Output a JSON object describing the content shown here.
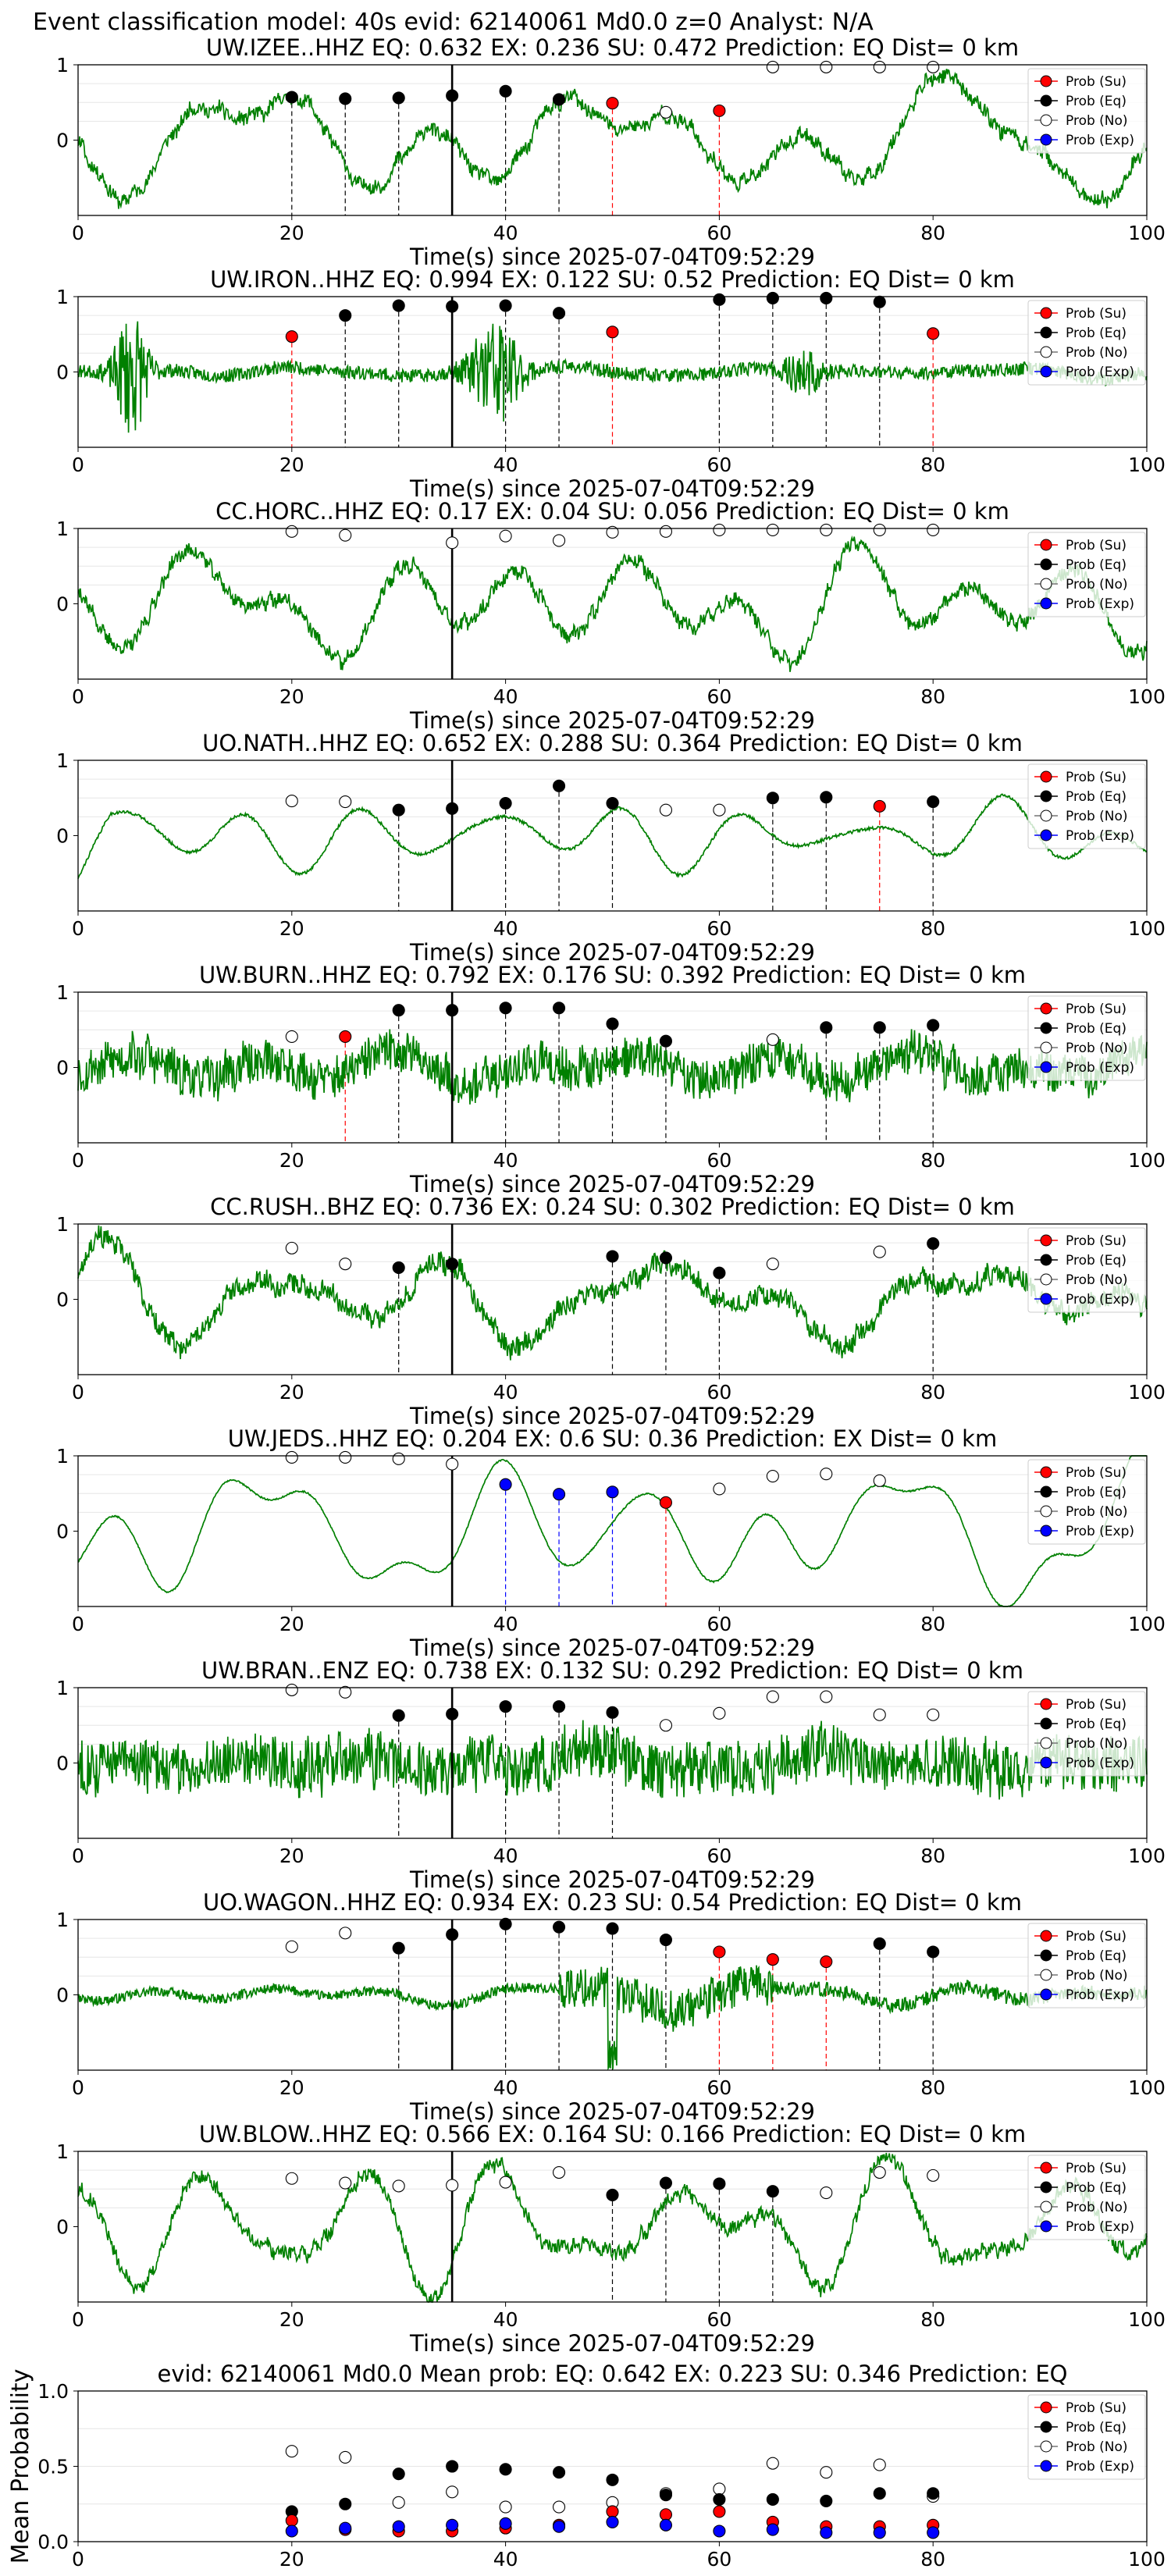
{
  "page_title": "Event classification model: 40s evid: 62140061 Md0.0 z=0 Analyst: N/A",
  "legend_labels": [
    "Prob (Su)",
    "Prob (Eq)",
    "Prob (No)",
    "Prob (Exp)"
  ],
  "colors": {
    "su": "#ff0000",
    "eq": "#000000",
    "no": "#ffffff",
    "exp": "#0000ff",
    "trace": "#008000"
  },
  "chart_data": [
    {
      "type": "line",
      "title": "UW.IZEE..HHZ   EQ: 0.632  EX: 0.236  SU: 0.472   Prediction: EQ    Dist= 0 km",
      "xlabel": "Time(s) since 2025-07-04T09:52:29",
      "xlim": [
        0,
        100
      ],
      "ylim": [
        -1,
        1
      ],
      "xticks": [
        "0",
        "20",
        "40",
        "60",
        "80",
        "100"
      ],
      "yticks": [
        "1",
        "0"
      ],
      "p_arrival": 35,
      "trace": {
        "character": "low-frequency",
        "seed": 11
      },
      "points": [
        {
          "t": 20,
          "cls": "eq",
          "p": 0.57
        },
        {
          "t": 25,
          "cls": "eq",
          "p": 0.55
        },
        {
          "t": 30,
          "cls": "eq",
          "p": 0.56
        },
        {
          "t": 35,
          "cls": "eq",
          "p": 0.59
        },
        {
          "t": 40,
          "cls": "eq",
          "p": 0.65
        },
        {
          "t": 45,
          "cls": "eq",
          "p": 0.54
        },
        {
          "t": 50,
          "cls": "su",
          "p": 0.49
        },
        {
          "t": 55,
          "cls": "no",
          "p": 0.37
        },
        {
          "t": 60,
          "cls": "su",
          "p": 0.39
        },
        {
          "t": 65,
          "cls": "no",
          "p": 0.97
        },
        {
          "t": 70,
          "cls": "no",
          "p": 0.97
        },
        {
          "t": 75,
          "cls": "no",
          "p": 0.97
        },
        {
          "t": 80,
          "cls": "no",
          "p": 0.97
        }
      ]
    },
    {
      "type": "line",
      "title": "UW.IRON..HHZ   EQ: 0.994  EX: 0.122  SU: 0.52   Prediction: EQ    Dist= 0 km",
      "xlabel": "Time(s) since 2025-07-04T09:52:29",
      "xlim": [
        0,
        100
      ],
      "ylim": [
        -1,
        1
      ],
      "xticks": [
        "0",
        "20",
        "40",
        "60",
        "80",
        "100"
      ],
      "yticks": [
        "1",
        "0"
      ],
      "p_arrival": 35,
      "trace": {
        "character": "quiet-bursts",
        "seed": 23
      },
      "points": [
        {
          "t": 20,
          "cls": "su",
          "p": 0.47
        },
        {
          "t": 25,
          "cls": "eq",
          "p": 0.75
        },
        {
          "t": 30,
          "cls": "eq",
          "p": 0.88
        },
        {
          "t": 35,
          "cls": "eq",
          "p": 0.87
        },
        {
          "t": 40,
          "cls": "eq",
          "p": 0.88
        },
        {
          "t": 45,
          "cls": "eq",
          "p": 0.78
        },
        {
          "t": 50,
          "cls": "su",
          "p": 0.53
        },
        {
          "t": 60,
          "cls": "eq",
          "p": 0.96
        },
        {
          "t": 65,
          "cls": "eq",
          "p": 0.98
        },
        {
          "t": 70,
          "cls": "eq",
          "p": 0.98
        },
        {
          "t": 75,
          "cls": "eq",
          "p": 0.93
        },
        {
          "t": 80,
          "cls": "su",
          "p": 0.51
        }
      ]
    },
    {
      "type": "line",
      "title": "CC.HORC..HHZ   EQ: 0.17  EX: 0.04  SU: 0.056   Prediction: EQ    Dist= 0 km",
      "xlabel": "Time(s) since 2025-07-04T09:52:29",
      "xlim": [
        0,
        100
      ],
      "ylim": [
        -1,
        1
      ],
      "xticks": [
        "0",
        "20",
        "40",
        "60",
        "80",
        "100"
      ],
      "yticks": [
        "1",
        "0"
      ],
      "p_arrival": 35,
      "trace": {
        "character": "low-frequency",
        "seed": 37
      },
      "points": [
        {
          "t": 20,
          "cls": "no",
          "p": 0.96
        },
        {
          "t": 25,
          "cls": "no",
          "p": 0.91
        },
        {
          "t": 35,
          "cls": "no",
          "p": 0.81
        },
        {
          "t": 40,
          "cls": "no",
          "p": 0.9
        },
        {
          "t": 45,
          "cls": "no",
          "p": 0.84
        },
        {
          "t": 50,
          "cls": "no",
          "p": 0.95
        },
        {
          "t": 55,
          "cls": "no",
          "p": 0.96
        },
        {
          "t": 60,
          "cls": "no",
          "p": 0.98
        },
        {
          "t": 65,
          "cls": "no",
          "p": 0.98
        },
        {
          "t": 70,
          "cls": "no",
          "p": 0.98
        },
        {
          "t": 75,
          "cls": "no",
          "p": 0.98
        },
        {
          "t": 80,
          "cls": "no",
          "p": 0.98
        }
      ]
    },
    {
      "type": "line",
      "title": "UO.NATH..HHZ   EQ: 0.652  EX: 0.288  SU: 0.364   Prediction: EQ    Dist= 0 km",
      "xlabel": "Time(s) since 2025-07-04T09:52:29",
      "xlim": [
        0,
        100
      ],
      "ylim": [
        -1,
        1
      ],
      "xticks": [
        "0",
        "20",
        "40",
        "60",
        "80",
        "100"
      ],
      "yticks": [
        "1",
        "0"
      ],
      "p_arrival": 35,
      "trace": {
        "character": "smooth-small",
        "seed": 41
      },
      "points": [
        {
          "t": 20,
          "cls": "no",
          "p": 0.46
        },
        {
          "t": 25,
          "cls": "no",
          "p": 0.45
        },
        {
          "t": 30,
          "cls": "eq",
          "p": 0.34
        },
        {
          "t": 35,
          "cls": "eq",
          "p": 0.36
        },
        {
          "t": 40,
          "cls": "eq",
          "p": 0.43
        },
        {
          "t": 45,
          "cls": "eq",
          "p": 0.66
        },
        {
          "t": 50,
          "cls": "eq",
          "p": 0.43
        },
        {
          "t": 55,
          "cls": "no",
          "p": 0.34
        },
        {
          "t": 60,
          "cls": "no",
          "p": 0.34
        },
        {
          "t": 65,
          "cls": "eq",
          "p": 0.5
        },
        {
          "t": 70,
          "cls": "eq",
          "p": 0.51
        },
        {
          "t": 75,
          "cls": "su",
          "p": 0.39
        },
        {
          "t": 80,
          "cls": "eq",
          "p": 0.45
        }
      ]
    },
    {
      "type": "line",
      "title": "UW.BURN..HHZ   EQ: 0.792  EX: 0.176  SU: 0.392   Prediction: EQ    Dist= 0 km",
      "xlabel": "Time(s) since 2025-07-04T09:52:29",
      "xlim": [
        0,
        100
      ],
      "ylim": [
        -1,
        1
      ],
      "xticks": [
        "0",
        "20",
        "40",
        "60",
        "80",
        "100"
      ],
      "yticks": [
        "1",
        "0"
      ],
      "p_arrival": 35,
      "trace": {
        "character": "noisy",
        "seed": 53
      },
      "points": [
        {
          "t": 20,
          "cls": "no",
          "p": 0.41
        },
        {
          "t": 25,
          "cls": "su",
          "p": 0.41
        },
        {
          "t": 30,
          "cls": "eq",
          "p": 0.76
        },
        {
          "t": 35,
          "cls": "eq",
          "p": 0.76
        },
        {
          "t": 40,
          "cls": "eq",
          "p": 0.79
        },
        {
          "t": 45,
          "cls": "eq",
          "p": 0.79
        },
        {
          "t": 50,
          "cls": "eq",
          "p": 0.58
        },
        {
          "t": 55,
          "cls": "eq",
          "p": 0.35
        },
        {
          "t": 65,
          "cls": "no",
          "p": 0.37
        },
        {
          "t": 70,
          "cls": "eq",
          "p": 0.53
        },
        {
          "t": 75,
          "cls": "eq",
          "p": 0.53
        },
        {
          "t": 80,
          "cls": "eq",
          "p": 0.56
        }
      ]
    },
    {
      "type": "line",
      "title": "CC.RUSH..BHZ   EQ: 0.736  EX: 0.24  SU: 0.302   Prediction: EQ    Dist= 0 km",
      "xlabel": "Time(s) since 2025-07-04T09:52:29",
      "xlim": [
        0,
        100
      ],
      "ylim": [
        -1,
        1
      ],
      "xticks": [
        "0",
        "20",
        "40",
        "60",
        "80",
        "100"
      ],
      "yticks": [
        "1",
        "0"
      ],
      "p_arrival": 35,
      "trace": {
        "character": "medium",
        "seed": 67
      },
      "points": [
        {
          "t": 20,
          "cls": "no",
          "p": 0.68
        },
        {
          "t": 25,
          "cls": "no",
          "p": 0.47
        },
        {
          "t": 30,
          "cls": "eq",
          "p": 0.42
        },
        {
          "t": 35,
          "cls": "eq",
          "p": 0.47
        },
        {
          "t": 50,
          "cls": "eq",
          "p": 0.57
        },
        {
          "t": 55,
          "cls": "eq",
          "p": 0.55
        },
        {
          "t": 60,
          "cls": "eq",
          "p": 0.35
        },
        {
          "t": 65,
          "cls": "no",
          "p": 0.47
        },
        {
          "t": 75,
          "cls": "no",
          "p": 0.63
        },
        {
          "t": 80,
          "cls": "eq",
          "p": 0.74
        }
      ]
    },
    {
      "type": "line",
      "title": "UW.JEDS..HHZ   EQ: 0.204  EX: 0.6  SU: 0.36   Prediction: EX    Dist= 0 km",
      "xlabel": "Time(s) since 2025-07-04T09:52:29",
      "xlim": [
        0,
        100
      ],
      "ylim": [
        -1,
        1
      ],
      "xticks": [
        "0",
        "20",
        "40",
        "60",
        "80",
        "100"
      ],
      "yticks": [
        "1",
        "0"
      ],
      "p_arrival": 35,
      "trace": {
        "character": "smooth-large",
        "seed": 79
      },
      "points": [
        {
          "t": 20,
          "cls": "no",
          "p": 0.98
        },
        {
          "t": 25,
          "cls": "no",
          "p": 0.98
        },
        {
          "t": 30,
          "cls": "no",
          "p": 0.96
        },
        {
          "t": 35,
          "cls": "no",
          "p": 0.89
        },
        {
          "t": 40,
          "cls": "exp",
          "p": 0.62
        },
        {
          "t": 45,
          "cls": "exp",
          "p": 0.49
        },
        {
          "t": 50,
          "cls": "exp",
          "p": 0.52
        },
        {
          "t": 55,
          "cls": "su",
          "p": 0.38
        },
        {
          "t": 60,
          "cls": "no",
          "p": 0.56
        },
        {
          "t": 65,
          "cls": "no",
          "p": 0.73
        },
        {
          "t": 70,
          "cls": "no",
          "p": 0.76
        },
        {
          "t": 75,
          "cls": "no",
          "p": 0.67
        }
      ]
    },
    {
      "type": "line",
      "title": "UW.BRAN..ENZ   EQ: 0.738  EX: 0.132  SU: 0.292   Prediction: EQ    Dist= 0 km",
      "xlabel": "Time(s) since 2025-07-04T09:52:29",
      "xlim": [
        0,
        100
      ],
      "ylim": [
        -1,
        1
      ],
      "xticks": [
        "0",
        "20",
        "40",
        "60",
        "80",
        "100"
      ],
      "yticks": [
        "1",
        "0"
      ],
      "p_arrival": 35,
      "trace": {
        "character": "high-frequency",
        "seed": 83
      },
      "points": [
        {
          "t": 20,
          "cls": "no",
          "p": 0.97
        },
        {
          "t": 25,
          "cls": "no",
          "p": 0.94
        },
        {
          "t": 30,
          "cls": "eq",
          "p": 0.63
        },
        {
          "t": 35,
          "cls": "eq",
          "p": 0.65
        },
        {
          "t": 40,
          "cls": "eq",
          "p": 0.75
        },
        {
          "t": 45,
          "cls": "eq",
          "p": 0.75
        },
        {
          "t": 50,
          "cls": "eq",
          "p": 0.67
        },
        {
          "t": 55,
          "cls": "no",
          "p": 0.5
        },
        {
          "t": 60,
          "cls": "no",
          "p": 0.66
        },
        {
          "t": 65,
          "cls": "no",
          "p": 0.88
        },
        {
          "t": 70,
          "cls": "no",
          "p": 0.88
        },
        {
          "t": 75,
          "cls": "no",
          "p": 0.64
        },
        {
          "t": 80,
          "cls": "no",
          "p": 0.64
        }
      ]
    },
    {
      "type": "line",
      "title": "UO.WAGON..HHZ   EQ: 0.934  EX: 0.23  SU: 0.54   Prediction: EQ    Dist= 0 km",
      "xlabel": "Time(s) since 2025-07-04T09:52:29",
      "xlim": [
        0,
        100
      ],
      "ylim": [
        -1,
        1
      ],
      "xticks": [
        "0",
        "20",
        "40",
        "60",
        "80",
        "100"
      ],
      "yticks": [
        "1",
        "0"
      ],
      "p_arrival": 35,
      "trace": {
        "character": "quiet-then-burst",
        "seed": 97
      },
      "points": [
        {
          "t": 20,
          "cls": "no",
          "p": 0.64
        },
        {
          "t": 25,
          "cls": "no",
          "p": 0.82
        },
        {
          "t": 30,
          "cls": "eq",
          "p": 0.62
        },
        {
          "t": 35,
          "cls": "eq",
          "p": 0.8
        },
        {
          "t": 40,
          "cls": "eq",
          "p": 0.94
        },
        {
          "t": 45,
          "cls": "eq",
          "p": 0.9
        },
        {
          "t": 50,
          "cls": "eq",
          "p": 0.88
        },
        {
          "t": 55,
          "cls": "eq",
          "p": 0.73
        },
        {
          "t": 60,
          "cls": "su",
          "p": 0.57
        },
        {
          "t": 65,
          "cls": "su",
          "p": 0.47
        },
        {
          "t": 70,
          "cls": "su",
          "p": 0.44
        },
        {
          "t": 75,
          "cls": "eq",
          "p": 0.68
        },
        {
          "t": 80,
          "cls": "eq",
          "p": 0.57
        }
      ]
    },
    {
      "type": "line",
      "title": "UW.BLOW..HHZ   EQ: 0.566  EX: 0.164  SU: 0.166   Prediction: EQ    Dist= 0 km",
      "xlabel": "Time(s) since 2025-07-04T09:52:29",
      "xlim": [
        0,
        100
      ],
      "ylim": [
        -1,
        1
      ],
      "xticks": [
        "0",
        "20",
        "40",
        "60",
        "80",
        "100"
      ],
      "yticks": [
        "1",
        "0"
      ],
      "p_arrival": 35,
      "trace": {
        "character": "low-frequency",
        "seed": 101
      },
      "points": [
        {
          "t": 20,
          "cls": "no",
          "p": 0.64
        },
        {
          "t": 25,
          "cls": "no",
          "p": 0.58
        },
        {
          "t": 30,
          "cls": "no",
          "p": 0.54
        },
        {
          "t": 35,
          "cls": "no",
          "p": 0.55
        },
        {
          "t": 40,
          "cls": "no",
          "p": 0.59
        },
        {
          "t": 45,
          "cls": "no",
          "p": 0.72
        },
        {
          "t": 50,
          "cls": "eq",
          "p": 0.42
        },
        {
          "t": 55,
          "cls": "eq",
          "p": 0.58
        },
        {
          "t": 60,
          "cls": "eq",
          "p": 0.57
        },
        {
          "t": 65,
          "cls": "eq",
          "p": 0.47
        },
        {
          "t": 70,
          "cls": "no",
          "p": 0.45
        },
        {
          "t": 75,
          "cls": "no",
          "p": 0.72
        },
        {
          "t": 80,
          "cls": "no",
          "p": 0.68
        }
      ]
    },
    {
      "type": "scatter",
      "title": "evid: 62140061  Md0.0   Mean prob:   EQ: 0.642  EX: 0.223  SU: 0.346   Prediction: EQ",
      "xlabel": "",
      "ylabel": "Mean Probability",
      "xlim": [
        0,
        100
      ],
      "ylim": [
        0,
        1
      ],
      "xticks": [
        "0",
        "20",
        "40",
        "60",
        "80",
        "100"
      ],
      "yticks": [
        "1.0",
        "0.5",
        "0.0"
      ],
      "grid": true,
      "x": [
        20,
        25,
        30,
        35,
        40,
        45,
        50,
        55,
        60,
        65,
        70,
        75,
        80
      ],
      "series": [
        {
          "name": "Prob (No)",
          "cls": "no",
          "values": [
            0.6,
            0.56,
            0.26,
            0.33,
            0.23,
            0.23,
            0.26,
            0.32,
            0.35,
            0.52,
            0.46,
            0.51,
            0.3
          ]
        },
        {
          "name": "Prob (Eq)",
          "cls": "eq",
          "values": [
            0.2,
            0.25,
            0.45,
            0.5,
            0.48,
            0.46,
            0.41,
            0.31,
            0.28,
            0.28,
            0.27,
            0.32,
            0.32
          ]
        },
        {
          "name": "Prob (Su)",
          "cls": "su",
          "values": [
            0.14,
            0.08,
            0.07,
            0.07,
            0.09,
            0.11,
            0.2,
            0.18,
            0.2,
            0.13,
            0.1,
            0.1,
            0.11
          ]
        },
        {
          "name": "Prob (Exp)",
          "cls": "exp",
          "values": [
            0.07,
            0.09,
            0.1,
            0.11,
            0.12,
            0.1,
            0.13,
            0.11,
            0.07,
            0.08,
            0.06,
            0.06,
            0.06
          ]
        }
      ]
    }
  ]
}
